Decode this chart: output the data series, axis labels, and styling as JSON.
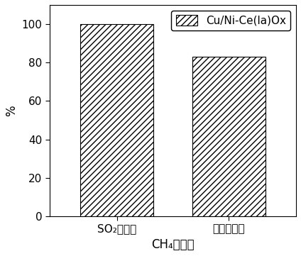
{
  "categories": [
    "SO₂去除率",
    "硬化物产率"
  ],
  "values": [
    100,
    83
  ],
  "bar_color": "white",
  "bar_edgecolor": "black",
  "hatch": "////",
  "xlabel": "CH₄还原法",
  "ylabel": "%",
  "ylim": [
    0,
    110
  ],
  "yticks": [
    0,
    20,
    40,
    60,
    80,
    100
  ],
  "legend_label": "Cu/Ni-Ce(la)Ox",
  "axis_fontsize": 12,
  "tick_fontsize": 11,
  "legend_fontsize": 11,
  "bar_width": 0.65,
  "bar_positions": [
    1,
    2
  ],
  "xlim": [
    0.4,
    2.6
  ]
}
